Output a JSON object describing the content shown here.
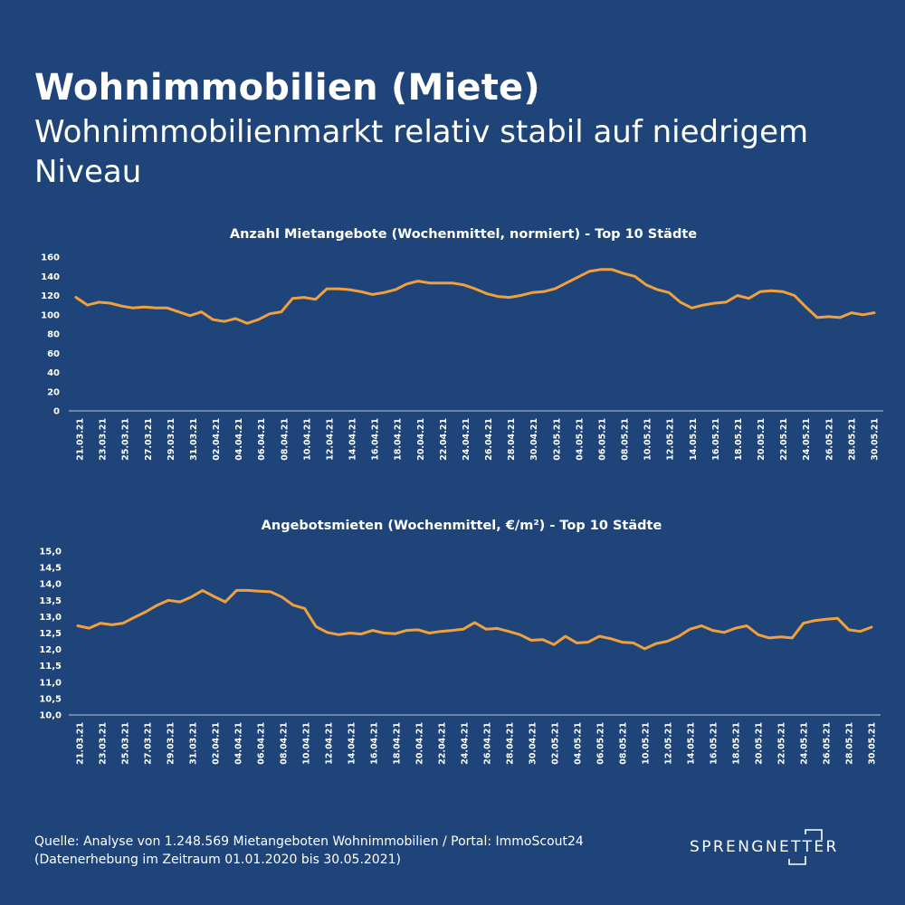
{
  "header": {
    "title": "Wohnimmobilien (Miete)",
    "subtitle": "Wohnimmobilienmarkt relativ stabil auf niedrigem Niveau"
  },
  "footer": {
    "source_line1": "Quelle: Analyse von 1.248.569 Mietangeboten Wohnimmobilien / Portal: ImmoScout24",
    "source_line2": "(Datenerhebung im Zeitraum 01.01.2020 bis  30.05.2021)",
    "logo_text": "SPRENGNETTER"
  },
  "colors": {
    "background": "#1e4479",
    "line": "#f0a03c",
    "text": "#ffffff"
  },
  "chart_data": [
    {
      "type": "line",
      "title": "Anzahl Mietangebote (Wochenmittel, normiert) - Top 10 Städte",
      "x_tick_labels": [
        "21.03.21",
        "23.03.21",
        "25.03.21",
        "27.03.21",
        "29.03.21",
        "31.03.21",
        "02.04.21",
        "04.04.21",
        "06.04.21",
        "08.04.21",
        "10.04.21",
        "12.04.21",
        "14.04.21",
        "16.04.21",
        "18.04.21",
        "20.04.21",
        "22.04.21",
        "24.04.21",
        "26.04.21",
        "28.04.21",
        "30.04.21",
        "02.05.21",
        "04.05.21",
        "06.05.21",
        "08.05.21",
        "10.05.21",
        "12.05.21",
        "14.05.21",
        "16.05.21",
        "18.05.21",
        "20.05.21",
        "22.05.21",
        "24.05.21",
        "26.05.21",
        "28.05.21",
        "30.05.21"
      ],
      "y_ticks": [
        "0",
        "20",
        "40",
        "60",
        "80",
        "100",
        "120",
        "140",
        "160"
      ],
      "ylim": [
        0,
        160
      ],
      "values": [
        118,
        110,
        113,
        112,
        109,
        107,
        108,
        107,
        107,
        103,
        99,
        103,
        95,
        93,
        96,
        91,
        95,
        101,
        103,
        117,
        118,
        116,
        127,
        127,
        126,
        124,
        121,
        123,
        126,
        132,
        135,
        133,
        133,
        133,
        131,
        127,
        122,
        119,
        118,
        120,
        123,
        124,
        127,
        133,
        139,
        145,
        147,
        147,
        143,
        140,
        131,
        126,
        123,
        113,
        107,
        110,
        112,
        113,
        120,
        117,
        124,
        125,
        124,
        120,
        108,
        97,
        98,
        97,
        102,
        100,
        102
      ]
    },
    {
      "type": "line",
      "title": "Angebotsmieten (Wochenmittel, €/m²) - Top 10 Städte",
      "x_tick_labels": [
        "21.03.21",
        "23.03.21",
        "25.03.21",
        "27.03.21",
        "29.03.21",
        "31.03.21",
        "02.04.21",
        "04.04.21",
        "06.04.21",
        "08.04.21",
        "10.04.21",
        "12.04.21",
        "14.04.21",
        "16.04.21",
        "18.04.21",
        "20.04.21",
        "22.04.21",
        "24.04.21",
        "26.04.21",
        "28.04.21",
        "30.04.21",
        "02.05.21",
        "04.05.21",
        "06.05.21",
        "08.05.21",
        "10.05.21",
        "12.05.21",
        "14.05.21",
        "16.05.21",
        "18.05.21",
        "20.05.21",
        "22.05.21",
        "24.05.21",
        "26.05.21",
        "28.05.21",
        "30.05.21"
      ],
      "y_ticks": [
        "10,0",
        "10,5",
        "11,0",
        "11,5",
        "12,0",
        "12,5",
        "13,0",
        "13,5",
        "14,0",
        "14,5",
        "15,0"
      ],
      "ylim": [
        10,
        15
      ],
      "values": [
        12.72,
        12.65,
        12.8,
        12.75,
        12.8,
        12.98,
        13.15,
        13.35,
        13.5,
        13.45,
        13.6,
        13.8,
        13.62,
        13.45,
        13.8,
        13.8,
        13.78,
        13.76,
        13.6,
        13.35,
        13.25,
        12.7,
        12.52,
        12.45,
        12.5,
        12.47,
        12.58,
        12.5,
        12.48,
        12.58,
        12.6,
        12.5,
        12.55,
        12.58,
        12.62,
        12.82,
        12.62,
        12.64,
        12.55,
        12.45,
        12.28,
        12.3,
        12.15,
        12.4,
        12.2,
        12.22,
        12.4,
        12.33,
        12.22,
        12.2,
        12.02,
        12.18,
        12.25,
        12.4,
        12.62,
        12.72,
        12.58,
        12.52,
        12.65,
        12.72,
        12.45,
        12.35,
        12.38,
        12.35,
        12.8,
        12.88,
        12.92,
        12.95,
        12.6,
        12.55,
        12.68
      ]
    }
  ]
}
